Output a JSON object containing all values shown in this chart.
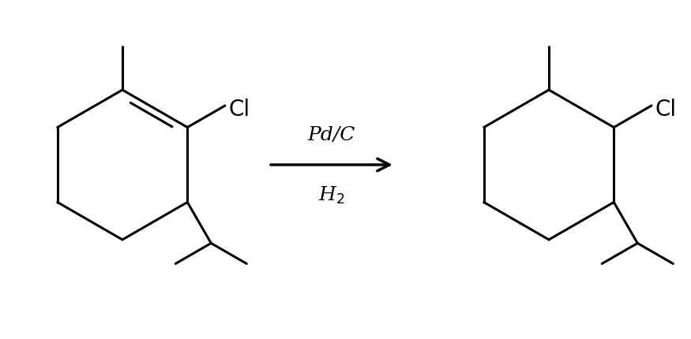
{
  "bg_color": "#ffffff",
  "line_color": "#000000",
  "line_width": 2.2,
  "font_size_cl": 20,
  "font_size_reaction": 18,
  "arrow_text_above": "Pd/C",
  "arrow_text_below": "H$_2$",
  "figw": 8.75,
  "figh": 4.31,
  "dpi": 100
}
